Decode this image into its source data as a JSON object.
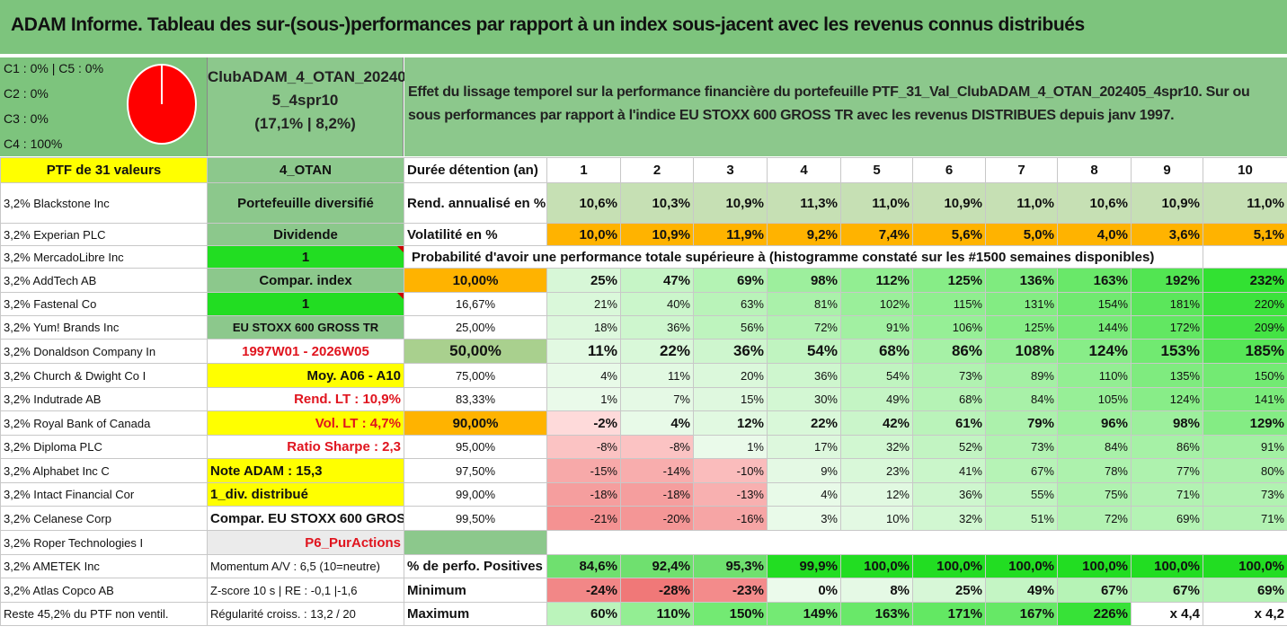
{
  "title": "ADAM Informe. Tableau des sur-(sous-)performances par rapport à un index sous-jacent avec les revenus connus distribués",
  "classes": [
    "C1 : 0% | C5 : 0%",
    "C2 : 0%",
    "C3 : 0%",
    "C4 : 100%"
  ],
  "pie_color": "#ff0000",
  "club": {
    "line1": "ClubADAM_4_OTAN_20240",
    "line2": "5_4spr10",
    "line3": "(17,1% | 8,2%)"
  },
  "effet": "Effet du lissage temporel sur la performance financière du portefeuille PTF_31_Val_ClubADAM_4_OTAN_202405_4spr10. Sur ou sous performances par rapport à l'indice EU STOXX 600 GROSS TR avec les revenus DISTRIBUES depuis janv 1997.",
  "ptf_label": "PTF de 31 valeurs",
  "ptf_code": "4_OTAN",
  "duree_label": "Durée détention (an)",
  "years": [
    "1",
    "2",
    "3",
    "4",
    "5",
    "6",
    "7",
    "8",
    "9",
    "10"
  ],
  "stocks": [
    "3,2% Blackstone Inc",
    "3,2% Experian PLC",
    "3,2% MercadoLibre Inc",
    "3,2% AddTech AB",
    "3,2% Fastenal Co",
    "3,2% Yum! Brands Inc",
    "3,2% Donaldson Company In",
    "3,2% Church & Dwight Co I",
    "3,2% Indutrade AB",
    "3,2% Royal Bank of Canada",
    "3,2% Diploma PLC",
    "3,2% Alphabet Inc C",
    "3,2% Intact Financial Cor",
    "3,2% Celanese Corp",
    "3,2% Roper Technologies I",
    "3,2% AMETEK Inc",
    "3,2% Atlas Copco AB",
    "Reste 45,2% du PTF non ventil."
  ],
  "info": [
    "Portefeuille diversifié",
    "Dividende",
    "1",
    "Compar. index",
    "1",
    "EU STOXX 600 GROSS TR",
    "1997W01 - 2026W05",
    "Moy. A06 - A10",
    "Rend. LT : 10,9%",
    "Vol. LT : 4,7%",
    "Ratio Sharpe : 2,3",
    "Note ADAM : 15,3",
    "1_div. distribué",
    "Compar. EU STOXX 600 GROSS TR",
    "P6_PurActions",
    "Momentum A/V : 6,5 (10=neutre)",
    "Z-score 10 s | RE : -0,1 |-1,6",
    "Régularité croiss. : 13,2 / 20"
  ],
  "rend": {
    "label": "Rend. annualisé en %",
    "values": [
      "10,6%",
      "10,3%",
      "10,9%",
      "11,3%",
      "11,0%",
      "10,9%",
      "11,0%",
      "10,6%",
      "10,9%",
      "11,0%"
    ]
  },
  "vol": {
    "label": "Volatilité en %",
    "values": [
      "10,0%",
      "10,9%",
      "11,9%",
      "9,2%",
      "7,4%",
      "5,6%",
      "5,0%",
      "4,0%",
      "3,6%",
      "5,1%"
    ]
  },
  "prob_title": "Probabilité d'avoir une performance totale supérieure à (histogramme constaté sur les #1500 semaines disponibles)",
  "quantiles": [
    {
      "p": "10,00%",
      "v": [
        "25%",
        "47%",
        "69%",
        "98%",
        "112%",
        "125%",
        "136%",
        "163%",
        "192%",
        "232%"
      ]
    },
    {
      "p": "16,67%",
      "v": [
        "21%",
        "40%",
        "63%",
        "81%",
        "102%",
        "115%",
        "131%",
        "154%",
        "181%",
        "220%"
      ]
    },
    {
      "p": "25,00%",
      "v": [
        "18%",
        "36%",
        "56%",
        "72%",
        "91%",
        "106%",
        "125%",
        "144%",
        "172%",
        "209%"
      ]
    },
    {
      "p": "50,00%",
      "v": [
        "11%",
        "22%",
        "36%",
        "54%",
        "68%",
        "86%",
        "108%",
        "124%",
        "153%",
        "185%"
      ]
    },
    {
      "p": "75,00%",
      "v": [
        "4%",
        "11%",
        "20%",
        "36%",
        "54%",
        "73%",
        "89%",
        "110%",
        "135%",
        "150%"
      ]
    },
    {
      "p": "83,33%",
      "v": [
        "1%",
        "7%",
        "15%",
        "30%",
        "49%",
        "68%",
        "84%",
        "105%",
        "124%",
        "141%"
      ]
    },
    {
      "p": "90,00%",
      "v": [
        "-2%",
        "4%",
        "12%",
        "22%",
        "42%",
        "61%",
        "79%",
        "96%",
        "98%",
        "129%"
      ]
    },
    {
      "p": "95,00%",
      "v": [
        "-8%",
        "-8%",
        "1%",
        "17%",
        "32%",
        "52%",
        "73%",
        "84%",
        "86%",
        "91%"
      ]
    },
    {
      "p": "97,50%",
      "v": [
        "-15%",
        "-14%",
        "-10%",
        "9%",
        "23%",
        "41%",
        "67%",
        "78%",
        "77%",
        "80%"
      ]
    },
    {
      "p": "99,00%",
      "v": [
        "-18%",
        "-18%",
        "-13%",
        "4%",
        "12%",
        "36%",
        "55%",
        "75%",
        "71%",
        "73%"
      ]
    },
    {
      "p": "99,50%",
      "v": [
        "-21%",
        "-20%",
        "-16%",
        "3%",
        "10%",
        "32%",
        "51%",
        "72%",
        "69%",
        "71%"
      ]
    }
  ],
  "pos": {
    "label": "% de perfo. Positives",
    "values": [
      "84,6%",
      "92,4%",
      "95,3%",
      "99,9%",
      "100,0%",
      "100,0%",
      "100,0%",
      "100,0%",
      "100,0%",
      "100,0%"
    ]
  },
  "min": {
    "label": "Minimum",
    "values": [
      "-24%",
      "-28%",
      "-23%",
      "0%",
      "8%",
      "25%",
      "49%",
      "67%",
      "67%",
      "69%"
    ]
  },
  "max": {
    "label": "Maximum",
    "values": [
      "60%",
      "110%",
      "150%",
      "149%",
      "163%",
      "171%",
      "167%",
      "226%",
      "x 4,4",
      "x 4,2"
    ]
  }
}
